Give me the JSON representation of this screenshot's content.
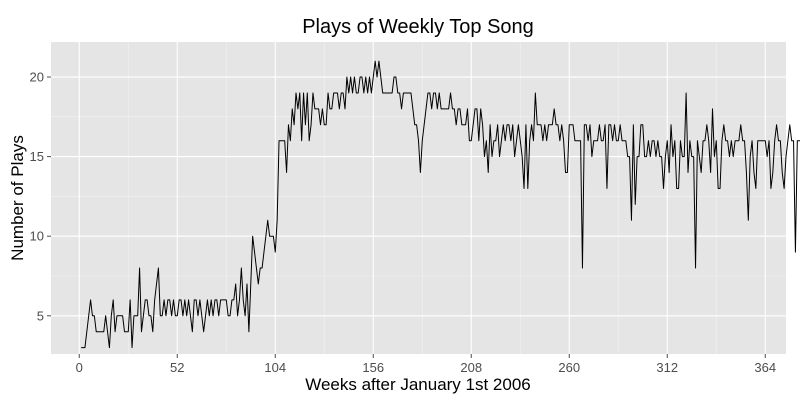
{
  "chart_data": {
    "type": "line",
    "title": "Plays of Weekly Top Song",
    "xlabel": "Weeks after January 1st 2006",
    "ylabel": "Number of Plays",
    "xlim": [
      -15,
      375
    ],
    "ylim": [
      2.6,
      22.2
    ],
    "x_ticks": [
      0,
      52,
      104,
      156,
      208,
      260,
      312,
      364
    ],
    "y_ticks": [
      5,
      10,
      15,
      20
    ],
    "grid": true,
    "legend": "none",
    "colors": {
      "panel": "#e5e5e5",
      "grid": "#ffffff",
      "line": "#000000"
    },
    "series": [
      {
        "x_start": 1,
        "x_step": 1,
        "values": [
          3,
          3,
          3,
          4,
          5,
          6,
          5,
          5,
          4,
          4,
          4,
          4,
          4,
          5,
          4,
          3,
          5,
          6,
          4,
          5,
          5,
          5,
          5,
          4,
          4,
          4,
          6,
          3,
          5,
          5,
          5,
          8,
          4,
          5,
          6,
          6,
          5,
          5,
          4,
          6,
          7,
          8,
          5,
          5,
          6,
          5,
          6,
          6,
          5,
          6,
          5,
          5,
          6,
          6,
          5,
          6,
          5,
          6,
          5,
          4,
          6,
          6,
          5,
          6,
          5,
          4,
          5,
          6,
          5,
          6,
          5,
          6,
          6,
          5,
          6,
          6,
          6,
          6,
          5,
          5,
          6,
          6,
          7,
          5,
          6,
          8,
          6,
          5,
          7,
          4,
          7,
          10,
          9,
          8,
          7,
          8,
          8,
          9,
          10,
          11,
          10,
          10,
          10,
          9,
          11,
          16,
          16,
          16,
          16,
          14,
          17,
          16,
          18,
          17,
          19,
          18,
          19,
          16,
          19,
          17,
          19,
          16,
          17,
          19,
          18,
          18,
          18,
          17,
          18,
          17,
          17,
          19,
          18,
          18,
          19,
          19,
          19,
          18,
          19,
          19,
          18,
          20,
          19,
          20,
          19,
          20,
          19,
          19,
          20,
          20,
          19,
          20,
          19,
          20,
          19,
          20,
          21,
          20,
          21,
          20,
          19,
          19,
          19,
          19,
          19,
          19,
          20,
          20,
          19,
          19,
          18,
          19,
          19,
          19,
          19,
          19,
          18,
          17,
          17,
          16,
          14,
          16,
          17,
          18,
          19,
          19,
          18,
          19,
          19,
          18,
          19,
          18,
          18,
          18,
          18,
          18,
          19,
          18,
          18,
          17,
          18,
          18,
          17,
          17,
          17,
          18,
          16,
          16,
          17,
          18,
          18,
          16,
          18,
          17,
          15,
          16,
          14,
          17,
          15,
          16,
          16,
          17,
          15,
          16,
          17,
          16,
          17,
          17,
          16,
          17,
          15,
          16,
          17,
          16,
          15,
          13,
          17,
          13,
          16,
          17,
          16,
          19,
          17,
          17,
          17,
          16,
          17,
          16,
          17,
          17,
          17,
          18,
          17,
          17,
          16,
          17,
          16,
          14,
          14,
          17,
          17,
          17,
          16,
          16,
          16,
          16,
          8,
          17,
          17,
          16,
          17,
          15,
          16,
          16,
          16,
          17,
          16,
          16,
          17,
          13,
          17,
          17,
          16,
          17,
          16,
          16,
          17,
          16,
          16,
          16,
          15,
          15,
          11,
          17,
          12,
          15,
          15,
          17,
          17,
          15,
          15,
          16,
          15,
          16,
          16,
          15,
          16,
          15,
          15,
          13,
          15,
          16,
          14,
          17,
          15,
          16,
          13,
          13,
          16,
          15,
          15,
          19,
          14,
          16,
          15,
          15,
          8,
          16,
          15,
          14,
          16,
          16,
          17,
          16,
          14,
          18,
          15,
          16,
          13,
          13,
          16,
          17,
          16,
          16,
          15,
          16,
          15,
          16,
          16,
          16,
          17,
          16,
          16,
          14,
          11,
          15,
          16,
          14,
          13,
          16,
          16,
          16,
          16,
          16,
          15,
          16,
          13,
          14,
          16,
          17,
          16,
          16,
          14,
          13,
          15,
          16,
          17,
          16,
          16,
          9,
          16,
          16,
          16,
          17,
          13
        ]
      }
    ]
  }
}
